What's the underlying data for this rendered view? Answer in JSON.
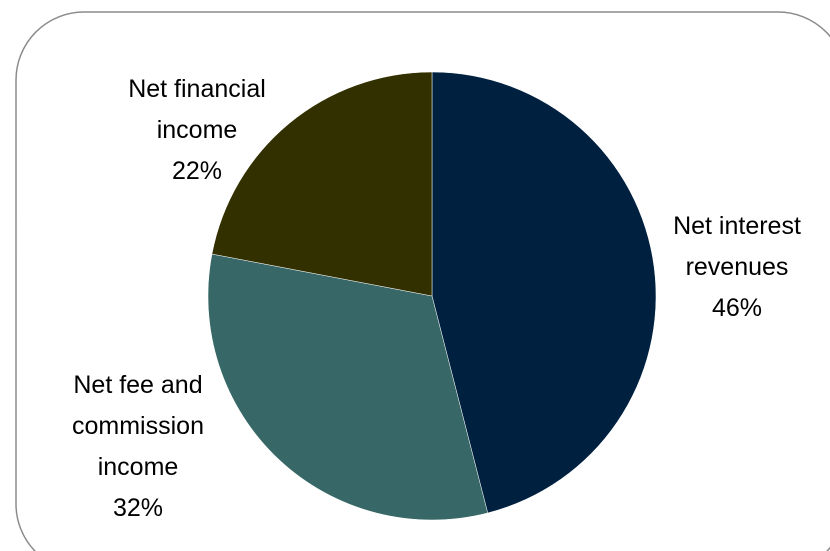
{
  "chart_data": {
    "type": "pie",
    "title": "",
    "slices": [
      {
        "label_lines": [
          "Net interest",
          "revenues"
        ],
        "percent_label": "46%",
        "value": 46,
        "color": "#00203f"
      },
      {
        "label_lines": [
          "Net fee and",
          "commission",
          "income"
        ],
        "percent_label": "32%",
        "value": 32,
        "color": "#376767"
      },
      {
        "label_lines": [
          "Net financial",
          "income"
        ],
        "percent_label": "22%",
        "value": 22,
        "color": "#333000"
      }
    ],
    "start_angle_deg": 0,
    "direction": "clockwise",
    "legend": "none"
  },
  "frame": {
    "border_color": "#8c8c8c",
    "background": "#ffffff"
  }
}
